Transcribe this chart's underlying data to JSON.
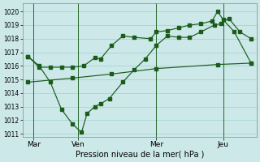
{
  "xlabel": "Pression niveau de la mer( hPa )",
  "bg_color": "#cce8e8",
  "grid_color": "#a8d4d4",
  "line_color": "#1a5c1a",
  "ylim": [
    1010.8,
    1020.6
  ],
  "yticks": [
    1011,
    1012,
    1013,
    1014,
    1015,
    1016,
    1017,
    1018,
    1019,
    1020
  ],
  "xlim": [
    0,
    21
  ],
  "xtick_pos": [
    1,
    5,
    12,
    18
  ],
  "xtick_labels": [
    "Mar",
    "Ven",
    "Mer",
    "Jeu"
  ],
  "vline_positions": [
    1,
    5,
    12,
    18
  ],
  "line1_x": [
    0.5,
    1.5,
    2.5,
    3.5,
    4.5,
    5.3,
    5.8,
    6.5,
    7.0,
    7.8,
    9.0,
    10.0,
    11.0,
    12.0,
    13.0,
    14.0,
    15.0,
    16.0,
    17.2,
    17.8,
    18.5,
    19.5,
    20.5
  ],
  "line1_y": [
    1016.7,
    1016.0,
    1014.8,
    1012.8,
    1011.7,
    1011.1,
    1012.5,
    1013.0,
    1013.2,
    1013.6,
    1014.8,
    1015.7,
    1016.5,
    1017.5,
    1018.2,
    1018.1,
    1018.1,
    1018.5,
    1019.0,
    1019.1,
    1019.5,
    1018.5,
    1018.0
  ],
  "line2_x": [
    0.5,
    1.5,
    2.5,
    3.5,
    4.5,
    5.5,
    6.5,
    7.0,
    8.0,
    9.0,
    10.0,
    11.5,
    12.0,
    13.0,
    14.0,
    15.0,
    16.0,
    17.0,
    17.5,
    18.0,
    19.0,
    20.5
  ],
  "line2_y": [
    1016.7,
    1015.9,
    1015.9,
    1015.9,
    1015.9,
    1016.0,
    1016.6,
    1016.5,
    1017.5,
    1018.2,
    1018.1,
    1018.0,
    1018.5,
    1018.6,
    1018.8,
    1019.0,
    1019.1,
    1019.3,
    1020.0,
    1019.4,
    1018.5,
    1016.2
  ],
  "line3_x": [
    0.5,
    4.5,
    8.0,
    12.0,
    17.5,
    20.5
  ],
  "line3_y": [
    1014.8,
    1015.1,
    1015.4,
    1015.8,
    1016.1,
    1016.2
  ]
}
